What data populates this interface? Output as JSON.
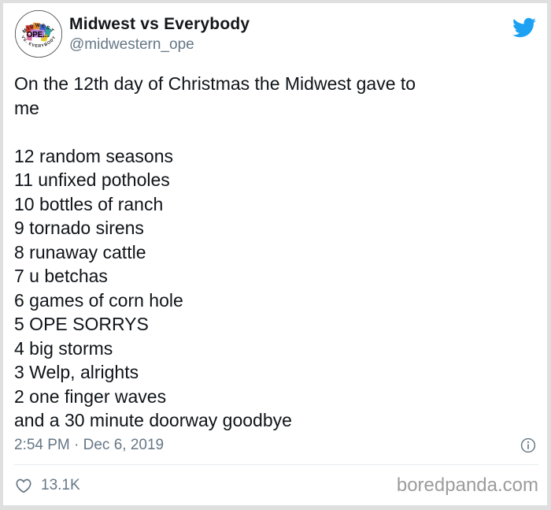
{
  "page": {
    "watermark": "boredpanda.com"
  },
  "colors": {
    "twitter_blue": "#1da1f2",
    "text_primary": "#0f1419",
    "text_secondary": "#657786",
    "divider": "#e6ecf0",
    "frame": "#dfdfdf",
    "watermark": "#9c9c9c"
  },
  "tweet": {
    "author": {
      "name": "Midwest vs Everybody",
      "handle": "@midwestern_ope"
    },
    "avatar": {
      "top_text": "MIDWEST",
      "center_text": "OPE...",
      "bottom_text": "VS. EVERYBODY"
    },
    "lines": [
      "On the 12th day of Christmas the Midwest gave to",
      "me",
      "",
      "12 random seasons",
      "11 unfixed potholes",
      "10 bottles of ranch",
      "9 tornado sirens",
      "8 runaway cattle",
      "7 u betchas",
      "6 games of corn hole",
      "5 OPE SORRYS",
      "4 big storms",
      "3 Welp, alrights",
      "2 one finger waves",
      "and a 30 minute doorway goodbye"
    ],
    "timestamp": "2:54 PM · Dec 6, 2019",
    "likes": "13.1K"
  }
}
